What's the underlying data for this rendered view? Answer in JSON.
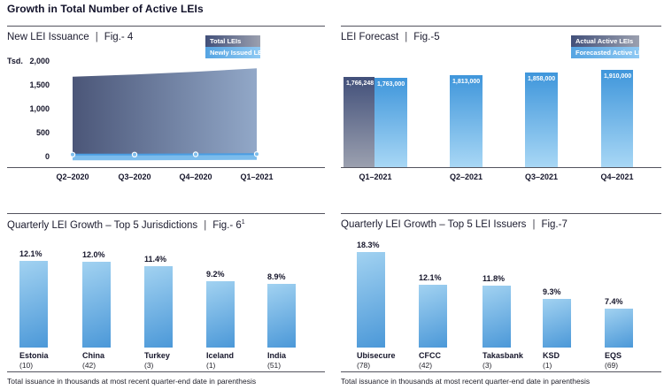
{
  "header": {
    "title": "Growth in Total Number of Active LEIs"
  },
  "sep": "|",
  "colors": {
    "dark_series_start": "#42507a",
    "dark_series_end": "#9ba0af",
    "light_bar_top": "#3f96db",
    "light_bar_bottom": "#a8d7f5",
    "light_series": "#4a9de2",
    "band_fill": "#7bbcec",
    "legend_light_start": "#55a4e2",
    "legend_light_end": "#8fc9f3",
    "bottom_bar_light": "#a2d2f1",
    "bottom_bar_dark": "#4b98d8",
    "area_start": "#4b5678",
    "area_end": "#92a8c8",
    "rule": "#53535e",
    "text_dark": "#15152a"
  },
  "panels": {
    "fig4": {
      "title": "New LEI Issuance",
      "fig": "Fig.- 4"
    },
    "fig5": {
      "title": "LEI Forecast",
      "fig": "Fig.-5"
    },
    "fig6": {
      "title": "Quarterly LEI Growth – Top 5 Jurisdictions",
      "fig": "Fig.- 6",
      "sup": "1",
      "footnote": "Total issuance in thousands at most recent quarter-end date in parenthesis"
    },
    "fig7": {
      "title": "Quarterly LEI Growth – Top 5 LEI Issuers",
      "fig": "Fig.-7",
      "footnote": "Total issuance in thousands at most recent quarter-end date in parenthesis"
    }
  },
  "chart_data": [
    {
      "id": "fig4",
      "type": "area",
      "title": "New LEI Issuance",
      "x": [
        "Q2–2020",
        "Q3–2020",
        "Q4–2020",
        "Q1–2021"
      ],
      "ylabel": "Tsd.",
      "ylim": [
        0,
        2000
      ],
      "yticks": [
        {
          "label": "2,000",
          "value": 2000
        },
        {
          "label": "1,500",
          "value": 1500
        },
        {
          "label": "1,000",
          "value": 1000
        },
        {
          "label": "500",
          "value": 500
        },
        {
          "label": "0",
          "value": 0
        }
      ],
      "legend_position": "top-right",
      "series": [
        {
          "name": "Total LEIs",
          "values": [
            1690,
            1735,
            1795,
            1865
          ]
        },
        {
          "name": "Newly Issued LEIs",
          "values": [
            60,
            60,
            65,
            70
          ]
        }
      ]
    },
    {
      "id": "fig5",
      "type": "bar",
      "title": "LEI Forecast",
      "categories": [
        "Q1–2021",
        "Q2–2021",
        "Q3–2021",
        "Q4–2021"
      ],
      "legend_position": "top-right",
      "series": [
        {
          "name": "Actual Active LEIs",
          "values": [
            1766248
          ],
          "labels": [
            "1,766,248"
          ],
          "category_index": [
            0
          ]
        },
        {
          "name": "Forecasted Active LEIs",
          "values": [
            1763000,
            1813000,
            1858000,
            1910000
          ],
          "labels": [
            "1,763,000",
            "1,813,000",
            "1,858,000",
            "1,910,000"
          ],
          "category_index": [
            0,
            1,
            2,
            3
          ]
        }
      ]
    },
    {
      "id": "fig6",
      "type": "bar",
      "title": "Quarterly LEI Growth – Top 5 Jurisdictions",
      "categories": [
        "Estonia",
        "China",
        "Turkey",
        "Iceland",
        "India"
      ],
      "counts": [
        "(10)",
        "(42)",
        "(3)",
        "(1)",
        "(51)"
      ],
      "values": [
        12.1,
        12.0,
        11.4,
        9.2,
        8.9
      ],
      "value_labels": [
        "12.1%",
        "12.0%",
        "11.4%",
        "9.2%",
        "8.9%"
      ]
    },
    {
      "id": "fig7",
      "type": "bar",
      "title": "Quarterly LEI Growth – Top 5 LEI Issuers",
      "categories": [
        "Ubisecure",
        "CFCC",
        "Takasbank",
        "KSD",
        "EQS"
      ],
      "counts": [
        "(78)",
        "(42)",
        "(3)",
        "(1)",
        "(69)"
      ],
      "values": [
        18.3,
        12.1,
        11.8,
        9.3,
        7.4
      ],
      "value_labels": [
        "18.3%",
        "12.1%",
        "11.8%",
        "9.3%",
        "7.4%"
      ]
    }
  ]
}
